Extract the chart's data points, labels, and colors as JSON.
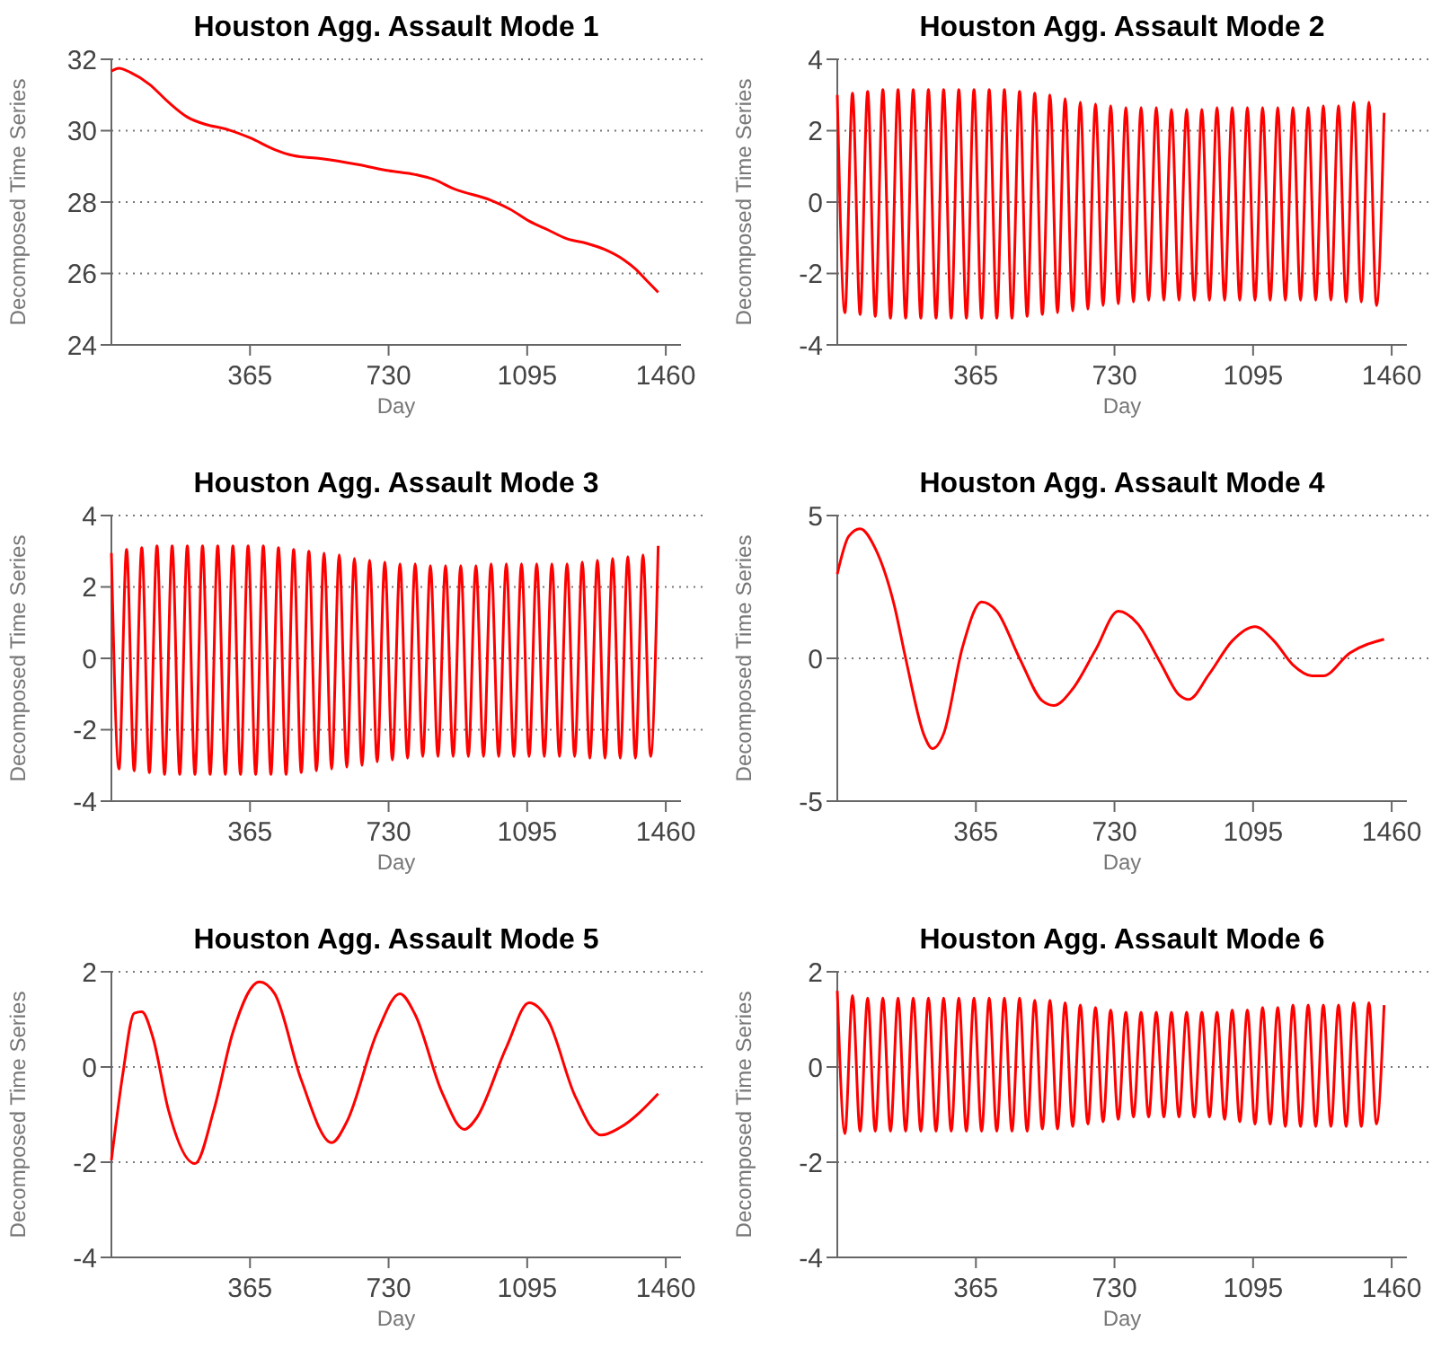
{
  "chart_data": [
    {
      "type": "line",
      "title": "Houston Agg. Assault Mode 1",
      "xlabel": "Day",
      "ylabel": "Decomposed Time Series",
      "color": "#ff0000",
      "grid": "y",
      "xlim": [
        0,
        1500
      ],
      "xticks": [
        365,
        730,
        1095,
        1460
      ],
      "ylim": [
        24,
        32
      ],
      "yticks": [
        24,
        26,
        28,
        30,
        32
      ],
      "x": [
        0,
        20,
        50,
        100,
        150,
        200,
        250,
        300,
        365,
        430,
        480,
        550,
        650,
        730,
        800,
        850,
        900,
        1000,
        1050,
        1100,
        1150,
        1200,
        1250,
        1300,
        1350,
        1380,
        1410,
        1440
      ],
      "values": [
        31.67,
        31.75,
        31.63,
        31.3,
        30.8,
        30.38,
        30.17,
        30.05,
        29.8,
        29.47,
        29.3,
        29.22,
        29.05,
        28.88,
        28.77,
        28.63,
        28.38,
        28.05,
        27.8,
        27.47,
        27.22,
        26.97,
        26.85,
        26.67,
        26.38,
        26.13,
        25.8,
        25.47
      ]
    },
    {
      "type": "line",
      "title": "Houston Agg. Assault Mode 2",
      "xlabel": "Day",
      "ylabel": "Decomposed Time Series",
      "color": "#ff0000",
      "grid": "y",
      "xlim": [
        0,
        1500
      ],
      "xticks": [
        365,
        730,
        1095,
        1460
      ],
      "ylim": [
        -4,
        4
      ],
      "yticks": [
        -4,
        -2,
        0,
        2,
        4
      ],
      "x": [
        0,
        20,
        40,
        60,
        80,
        100,
        120,
        140,
        160,
        180,
        200,
        220,
        240,
        260,
        280,
        300,
        320,
        340,
        360,
        380,
        400,
        420,
        440,
        460,
        480,
        500,
        520,
        540,
        560,
        580,
        600,
        620,
        640,
        660,
        680,
        700,
        720,
        740,
        760,
        780,
        800,
        820,
        840,
        860,
        880,
        900,
        920,
        940,
        960,
        980,
        1000,
        1020,
        1040,
        1060,
        1080,
        1100,
        1120,
        1140,
        1160,
        1180,
        1200,
        1220,
        1240,
        1260,
        1280,
        1300,
        1320,
        1340,
        1360,
        1380,
        1400,
        1420,
        1440
      ],
      "values": [
        3.0,
        -3.1,
        3.05,
        -3.15,
        3.1,
        -3.2,
        3.15,
        -3.25,
        3.15,
        -3.25,
        3.15,
        -3.25,
        3.15,
        -3.25,
        3.15,
        -3.25,
        3.15,
        -3.25,
        3.15,
        -3.25,
        3.15,
        -3.25,
        3.15,
        -3.25,
        3.1,
        -3.2,
        3.05,
        -3.15,
        3.0,
        -3.1,
        2.9,
        -3.05,
        2.8,
        -3.0,
        2.75,
        -2.9,
        2.7,
        -2.85,
        2.65,
        -2.8,
        2.65,
        -2.75,
        2.65,
        -2.75,
        2.6,
        -2.75,
        2.6,
        -2.75,
        2.6,
        -2.75,
        2.65,
        -2.75,
        2.65,
        -2.75,
        2.65,
        -2.75,
        2.65,
        -2.75,
        2.65,
        -2.75,
        2.65,
        -2.75,
        2.65,
        -2.75,
        2.7,
        -2.75,
        2.7,
        -2.8,
        2.8,
        -2.8,
        2.8,
        -2.9,
        2.5
      ]
    },
    {
      "type": "line",
      "title": "Houston Agg. Assault Mode 3",
      "xlabel": "Day",
      "ylabel": "Decomposed Time Series",
      "color": "#ff0000",
      "grid": "y",
      "xlim": [
        0,
        1500
      ],
      "xticks": [
        365,
        730,
        1095,
        1460
      ],
      "ylim": [
        -4,
        4
      ],
      "yticks": [
        -4,
        -2,
        0,
        2,
        4
      ],
      "x": [
        0,
        20,
        40,
        60,
        80,
        100,
        120,
        140,
        160,
        180,
        200,
        220,
        240,
        260,
        280,
        300,
        320,
        340,
        360,
        380,
        400,
        420,
        440,
        460,
        480,
        500,
        520,
        540,
        560,
        580,
        600,
        620,
        640,
        660,
        680,
        700,
        720,
        740,
        760,
        780,
        800,
        820,
        840,
        860,
        880,
        900,
        920,
        940,
        960,
        980,
        1000,
        1020,
        1040,
        1060,
        1080,
        1100,
        1120,
        1140,
        1160,
        1180,
        1200,
        1220,
        1240,
        1260,
        1280,
        1300,
        1320,
        1340,
        1360,
        1380,
        1400,
        1420,
        1440
      ],
      "values": [
        2.95,
        -3.1,
        3.05,
        -3.15,
        3.1,
        -3.2,
        3.15,
        -3.25,
        3.15,
        -3.25,
        3.15,
        -3.25,
        3.15,
        -3.25,
        3.15,
        -3.25,
        3.15,
        -3.25,
        3.15,
        -3.25,
        3.15,
        -3.25,
        3.1,
        -3.25,
        3.05,
        -3.2,
        3.0,
        -3.15,
        2.95,
        -3.1,
        2.9,
        -3.05,
        2.8,
        -3.0,
        2.75,
        -2.9,
        2.7,
        -2.85,
        2.65,
        -2.8,
        2.65,
        -2.75,
        2.6,
        -2.75,
        2.6,
        -2.75,
        2.6,
        -2.75,
        2.6,
        -2.75,
        2.65,
        -2.75,
        2.65,
        -2.75,
        2.65,
        -2.75,
        2.65,
        -2.75,
        2.65,
        -2.75,
        2.65,
        -2.75,
        2.7,
        -2.8,
        2.75,
        -2.8,
        2.8,
        -2.8,
        2.85,
        -2.8,
        2.9,
        -2.75,
        3.15
      ]
    },
    {
      "type": "line",
      "title": "Houston Agg. Assault Mode 4",
      "xlabel": "Day",
      "ylabel": "Decomposed Time Series",
      "color": "#ff0000",
      "grid": "y",
      "xlim": [
        0,
        1500
      ],
      "xticks": [
        365,
        730,
        1095,
        1460
      ],
      "ylim": [
        -5,
        5
      ],
      "yticks": [
        -5,
        0,
        5
      ],
      "x": [
        0,
        30,
        60,
        100,
        150,
        180,
        230,
        250,
        280,
        330,
        380,
        420,
        480,
        540,
        570,
        620,
        680,
        740,
        790,
        850,
        900,
        925,
        980,
        1040,
        1100,
        1150,
        1200,
        1250,
        1280,
        1350,
        1440
      ],
      "values": [
        2.95,
        4.27,
        4.54,
        3.85,
        1.86,
        0,
        -2.74,
        -3.16,
        -2.64,
        0.4,
        1.97,
        1.65,
        0,
        -1.49,
        -1.65,
        -1.07,
        0.29,
        1.65,
        1.23,
        -0.13,
        -1.28,
        -1.44,
        -0.54,
        0.61,
        1.11,
        0.61,
        -0.23,
        -0.61,
        -0.61,
        0.19,
        0.67
      ]
    },
    {
      "type": "line",
      "title": "Houston Agg. Assault Mode 5",
      "xlabel": "Day",
      "ylabel": "Decomposed Time Series",
      "color": "#ff0000",
      "grid": "y",
      "xlim": [
        0,
        1500
      ],
      "xticks": [
        365,
        730,
        1095,
        1460
      ],
      "ylim": [
        -4,
        2
      ],
      "yticks": [
        -4,
        -2,
        0,
        2
      ],
      "x": [
        0,
        30,
        60,
        80,
        110,
        150,
        220,
        270,
        320,
        390,
        430,
        500,
        580,
        620,
        700,
        760,
        800,
        870,
        930,
        960,
        1040,
        1100,
        1150,
        1220,
        1290,
        1340,
        1440
      ],
      "values": [
        -1.96,
        -0.15,
        1.13,
        1.16,
        0.6,
        -0.9,
        -2.03,
        -0.9,
        0.73,
        1.79,
        1.54,
        -0.27,
        -1.59,
        -1.15,
        0.73,
        1.54,
        1.1,
        -0.52,
        -1.31,
        -1.09,
        0.41,
        1.35,
        0.98,
        -0.59,
        -1.43,
        -1.27,
        -0.56
      ]
    },
    {
      "type": "line",
      "title": "Houston Agg. Assault Mode 6",
      "xlabel": "Day",
      "ylabel": "Decomposed Time Series",
      "color": "#ff0000",
      "grid": "y",
      "xlim": [
        0,
        1500
      ],
      "xticks": [
        365,
        730,
        1095,
        1460
      ],
      "ylim": [
        -4,
        2
      ],
      "yticks": [
        -4,
        -2,
        0,
        2
      ],
      "x": [
        0,
        20,
        40,
        60,
        80,
        100,
        120,
        140,
        160,
        180,
        200,
        220,
        240,
        260,
        280,
        300,
        320,
        340,
        360,
        380,
        400,
        420,
        440,
        460,
        480,
        500,
        520,
        540,
        560,
        580,
        600,
        620,
        640,
        660,
        680,
        700,
        720,
        740,
        760,
        780,
        800,
        820,
        840,
        860,
        880,
        900,
        920,
        940,
        960,
        980,
        1000,
        1020,
        1040,
        1060,
        1080,
        1100,
        1120,
        1140,
        1160,
        1180,
        1200,
        1220,
        1240,
        1260,
        1280,
        1300,
        1320,
        1340,
        1360,
        1380,
        1400,
        1420,
        1440
      ],
      "values": [
        1.6,
        -1.4,
        1.5,
        -1.35,
        1.45,
        -1.35,
        1.45,
        -1.35,
        1.45,
        -1.35,
        1.45,
        -1.35,
        1.45,
        -1.35,
        1.45,
        -1.35,
        1.45,
        -1.35,
        1.45,
        -1.35,
        1.45,
        -1.35,
        1.45,
        -1.35,
        1.45,
        -1.35,
        1.4,
        -1.3,
        1.4,
        -1.3,
        1.35,
        -1.25,
        1.3,
        -1.2,
        1.25,
        -1.15,
        1.2,
        -1.1,
        1.15,
        -1.05,
        1.15,
        -1.05,
        1.15,
        -1.05,
        1.15,
        -1.05,
        1.15,
        -1.05,
        1.15,
        -1.05,
        1.15,
        -1.1,
        1.2,
        -1.15,
        1.2,
        -1.2,
        1.25,
        -1.2,
        1.25,
        -1.25,
        1.3,
        -1.25,
        1.3,
        -1.25,
        1.3,
        -1.25,
        1.3,
        -1.25,
        1.35,
        -1.25,
        1.35,
        -1.2,
        1.3
      ]
    }
  ]
}
